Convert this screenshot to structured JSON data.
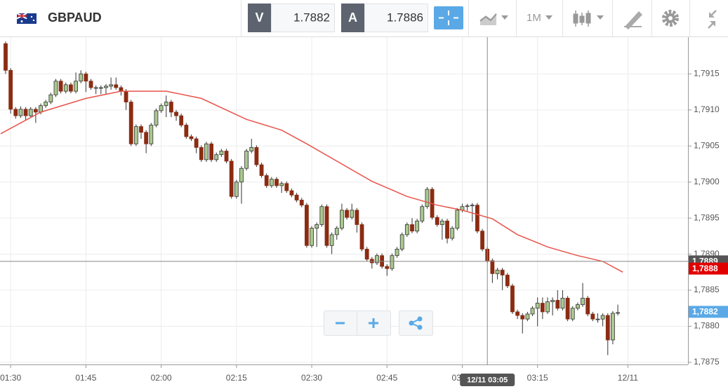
{
  "toolbar": {
    "symbol": "GBPAUD",
    "bid_label": "V",
    "bid": 1.7882,
    "ask_label": "A",
    "ask": 1.7886,
    "timeframe": "1M"
  },
  "chart_data": {
    "type": "candlestick",
    "x": [
      -1,
      0,
      1,
      2,
      3,
      4,
      5,
      6,
      7,
      8,
      9,
      10,
      11,
      12,
      13,
      14,
      15,
      16,
      17,
      18,
      19,
      20,
      21,
      22,
      23,
      24,
      25,
      26,
      27,
      28,
      29,
      30,
      31,
      32,
      33,
      34,
      35,
      36,
      37,
      38,
      39,
      40,
      41,
      42,
      43,
      44,
      45,
      46,
      47,
      48,
      49,
      50,
      51,
      52,
      53,
      54,
      55,
      56,
      57,
      58,
      59,
      60,
      61,
      62,
      63,
      64,
      65,
      66,
      67,
      68,
      69,
      70,
      71,
      72,
      73,
      74,
      75,
      76,
      77,
      78,
      79,
      80,
      81,
      82,
      83,
      84,
      85,
      86,
      87,
      88,
      89,
      90,
      91,
      92,
      93,
      94,
      95,
      96,
      97,
      98,
      99,
      100,
      101,
      102,
      103,
      104,
      105,
      106,
      107,
      108,
      109,
      110,
      111,
      112,
      113,
      114,
      115,
      116,
      117,
      118,
      119,
      120,
      121
    ],
    "open": [
      1.79192,
      1.79155,
      1.79101,
      1.79092,
      1.79101,
      1.79092,
      1.79101,
      1.79097,
      1.79106,
      1.79111,
      1.79121,
      1.7914,
      1.79126,
      1.79135,
      1.79126,
      1.7914,
      1.7915,
      1.7914,
      1.79131,
      1.79131,
      1.79131,
      1.79133,
      1.79135,
      1.79131,
      1.79126,
      1.79111,
      1.79053,
      1.79077,
      1.79069,
      1.79053,
      1.79079,
      1.79099,
      1.79106,
      1.79111,
      1.79097,
      1.79092,
      1.79079,
      1.79063,
      1.7906,
      1.79048,
      1.79031,
      1.79053,
      1.79031,
      1.79038,
      1.79043,
      1.79029,
      1.7898,
      1.79,
      1.79019,
      1.79043,
      1.79048,
      1.79024,
      1.79009,
      1.78995,
      1.79004,
      1.78995,
      1.78998,
      1.78988,
      1.78982,
      1.78975,
      1.78968,
      1.78912,
      1.78936,
      1.78941,
      1.78966,
      1.78912,
      1.78927,
      1.78936,
      1.78961,
      1.78951,
      1.78961,
      1.78941,
      1.78907,
      1.78893,
      1.78888,
      1.78898,
      1.78883,
      1.7888,
      1.78898,
      1.78907,
      1.78927,
      1.78941,
      1.78932,
      1.78946,
      1.78966,
      1.7899,
      1.78951,
      1.78941,
      1.78946,
      1.78922,
      1.78936,
      1.78961,
      1.78966,
      1.78967,
      1.78968,
      1.78932,
      1.78907,
      1.78891,
      1.78873,
      1.78878,
      1.78871,
      1.78856,
      1.7882,
      1.78815,
      1.7881,
      1.78817,
      1.78825,
      1.78832,
      1.7882,
      1.78834,
      1.78836,
      1.78825,
      1.78839,
      1.7881,
      1.78825,
      1.7883,
      1.78839,
      1.78817,
      1.7881,
      1.7881,
      1.78815,
      1.78781,
      1.78818
    ],
    "high": [
      1.79195,
      1.79158,
      1.79104,
      1.79105,
      1.79104,
      1.79104,
      1.79104,
      1.79109,
      1.79114,
      1.79124,
      1.79143,
      1.79143,
      1.79138,
      1.79138,
      1.79152,
      1.79155,
      1.79153,
      1.79143,
      1.79134,
      1.79134,
      1.79136,
      1.79145,
      1.79145,
      1.79134,
      1.79129,
      1.79114,
      1.7908,
      1.7908,
      1.79072,
      1.79082,
      1.79102,
      1.79109,
      1.7912,
      1.79114,
      1.791,
      1.79095,
      1.79082,
      1.79066,
      1.79063,
      1.79051,
      1.79056,
      1.79056,
      1.79041,
      1.79046,
      1.79046,
      1.79032,
      1.79003,
      1.79022,
      1.79046,
      1.7906,
      1.79051,
      1.79027,
      1.79012,
      1.79007,
      1.79007,
      1.79001,
      1.79001,
      1.78991,
      1.78985,
      1.78978,
      1.78971,
      1.78939,
      1.78944,
      1.78969,
      1.78969,
      1.7893,
      1.78939,
      1.7897,
      1.78964,
      1.7897,
      1.78964,
      1.78944,
      1.7891,
      1.78896,
      1.78901,
      1.78901,
      1.78886,
      1.78901,
      1.7891,
      1.7893,
      1.78944,
      1.7895,
      1.78949,
      1.78969,
      1.78993,
      1.78993,
      1.78954,
      1.78949,
      1.78949,
      1.78939,
      1.78964,
      1.7897,
      1.7897,
      1.78971,
      1.78971,
      1.78935,
      1.7891,
      1.78894,
      1.78881,
      1.78881,
      1.78874,
      1.78859,
      1.78823,
      1.78818,
      1.7882,
      1.78828,
      1.7884,
      1.7884,
      1.7884,
      1.7884,
      1.7885,
      1.7885,
      1.78842,
      1.78828,
      1.78833,
      1.7886,
      1.78842,
      1.7882,
      1.78818,
      1.78818,
      1.78818,
      1.78821,
      1.7883
    ],
    "low": [
      1.7915,
      1.79095,
      1.79088,
      1.79089,
      1.79085,
      1.79089,
      1.79082,
      1.79094,
      1.79103,
      1.79108,
      1.79118,
      1.79123,
      1.79123,
      1.79123,
      1.79123,
      1.79137,
      1.79125,
      1.79128,
      1.79122,
      1.79122,
      1.79122,
      1.79128,
      1.79128,
      1.7912,
      1.791,
      1.7905,
      1.7905,
      1.7906,
      1.7904,
      1.7905,
      1.79076,
      1.79096,
      1.7909,
      1.7909,
      1.79085,
      1.79076,
      1.7906,
      1.79057,
      1.7904,
      1.79028,
      1.79028,
      1.79028,
      1.79028,
      1.79035,
      1.79026,
      1.78977,
      1.78977,
      1.7897,
      1.79016,
      1.7904,
      1.79021,
      1.79006,
      1.78992,
      1.78992,
      1.78992,
      1.78985,
      1.78985,
      1.78979,
      1.78972,
      1.78965,
      1.78909,
      1.78909,
      1.7891,
      1.78938,
      1.78909,
      1.789,
      1.7892,
      1.78933,
      1.78948,
      1.78948,
      1.7893,
      1.78904,
      1.7889,
      1.7888,
      1.78885,
      1.7888,
      1.7887,
      1.78877,
      1.78895,
      1.78904,
      1.78924,
      1.78929,
      1.78929,
      1.78943,
      1.78963,
      1.78948,
      1.78938,
      1.7892,
      1.78915,
      1.78919,
      1.78933,
      1.78958,
      1.7896,
      1.78945,
      1.78929,
      1.78904,
      1.78888,
      1.7886,
      1.78865,
      1.7885,
      1.78853,
      1.78817,
      1.7881,
      1.7879,
      1.78807,
      1.78814,
      1.788,
      1.7881,
      1.78817,
      1.78815,
      1.78822,
      1.78822,
      1.78807,
      1.78807,
      1.78822,
      1.78827,
      1.78814,
      1.78807,
      1.78805,
      1.788,
      1.7876,
      1.78775,
      1.78815
    ],
    "close": [
      1.79155,
      1.79101,
      1.79092,
      1.79101,
      1.79092,
      1.79101,
      1.79097,
      1.79106,
      1.79111,
      1.79121,
      1.7914,
      1.79126,
      1.79135,
      1.79126,
      1.7914,
      1.7915,
      1.7914,
      1.79131,
      1.79131,
      1.79131,
      1.79133,
      1.79135,
      1.79131,
      1.79126,
      1.79111,
      1.79053,
      1.79077,
      1.79069,
      1.79053,
      1.79079,
      1.79099,
      1.79106,
      1.79111,
      1.79097,
      1.79092,
      1.79079,
      1.79063,
      1.7906,
      1.79048,
      1.79031,
      1.79053,
      1.79031,
      1.79038,
      1.79043,
      1.79029,
      1.7898,
      1.79,
      1.79019,
      1.79043,
      1.79048,
      1.79024,
      1.79009,
      1.78995,
      1.79004,
      1.78995,
      1.78998,
      1.78988,
      1.78982,
      1.78975,
      1.78968,
      1.78912,
      1.78936,
      1.78941,
      1.78966,
      1.78912,
      1.78927,
      1.78936,
      1.78961,
      1.78951,
      1.78961,
      1.78941,
      1.78907,
      1.78893,
      1.78888,
      1.78898,
      1.78883,
      1.7888,
      1.78898,
      1.78907,
      1.78927,
      1.78941,
      1.78932,
      1.78946,
      1.78966,
      1.7899,
      1.78951,
      1.78941,
      1.78946,
      1.78922,
      1.78936,
      1.78961,
      1.78966,
      1.78967,
      1.78968,
      1.78932,
      1.78907,
      1.78891,
      1.78873,
      1.78878,
      1.78871,
      1.78856,
      1.7882,
      1.78815,
      1.7881,
      1.78817,
      1.78825,
      1.78832,
      1.7882,
      1.78834,
      1.78836,
      1.78825,
      1.78839,
      1.7881,
      1.78825,
      1.7883,
      1.78839,
      1.78817,
      1.7881,
      1.7881,
      1.78815,
      1.78781,
      1.78818,
      1.78819
    ],
    "up_color": "#a9c88f",
    "down_color": "#8b2c12",
    "wick_color": "#333333",
    "moving_average": {
      "color": "#e8534a",
      "x": [
        -2,
        6,
        15,
        22,
        31,
        38,
        47,
        54,
        59,
        65,
        72,
        79,
        85,
        90,
        96,
        101,
        107,
        113,
        118,
        122
      ],
      "values": [
        1.79067,
        1.79097,
        1.79116,
        1.79126,
        1.79126,
        1.79116,
        1.79087,
        1.79072,
        1.79053,
        1.79029,
        1.79001,
        1.7898,
        1.78968,
        1.78961,
        1.78949,
        1.78927,
        1.7891,
        1.78898,
        1.7889,
        1.78875
      ]
    },
    "xlim": [
      -2.12,
      134.98
    ],
    "ylim": [
      1.78747,
      1.79201
    ],
    "xticks": [
      {
        "value": 0,
        "label": "01:30"
      },
      {
        "value": 15,
        "label": "01:45"
      },
      {
        "value": 30,
        "label": "02:00"
      },
      {
        "value": 45,
        "label": "02:15"
      },
      {
        "value": 60,
        "label": "02:30"
      },
      {
        "value": 75,
        "label": "02:45"
      },
      {
        "value": 90,
        "label": "03:00"
      },
      {
        "value": 105,
        "label": "03:15"
      },
      {
        "value": 123,
        "label": "12/11"
      }
    ],
    "yticks": [
      {
        "value": 1.7915,
        "label": "1,7915"
      },
      {
        "value": 1.791,
        "label": "1,7910"
      },
      {
        "value": 1.7905,
        "label": "1,7905"
      },
      {
        "value": 1.79,
        "label": "1,7900"
      },
      {
        "value": 1.7895,
        "label": "1,7895"
      },
      {
        "value": 1.789,
        "label": "1,7890"
      },
      {
        "value": 1.7885,
        "label": "1,7885"
      },
      {
        "value": 1.788,
        "label": "1,7880"
      },
      {
        "value": 1.7875,
        "label": "1,7875"
      }
    ],
    "grid": true,
    "price_markers": [
      {
        "value": 1.7889,
        "label": "1,7889",
        "color": "#555555"
      },
      {
        "value": 1.7888,
        "label": "1,7888",
        "color": "#e10000"
      },
      {
        "value": 1.7882,
        "label": "1,7882",
        "color": "#5aa9e6"
      }
    ],
    "crosshair": {
      "x": 95,
      "y": 1.7889,
      "x_label": "12/11 03:05"
    }
  }
}
